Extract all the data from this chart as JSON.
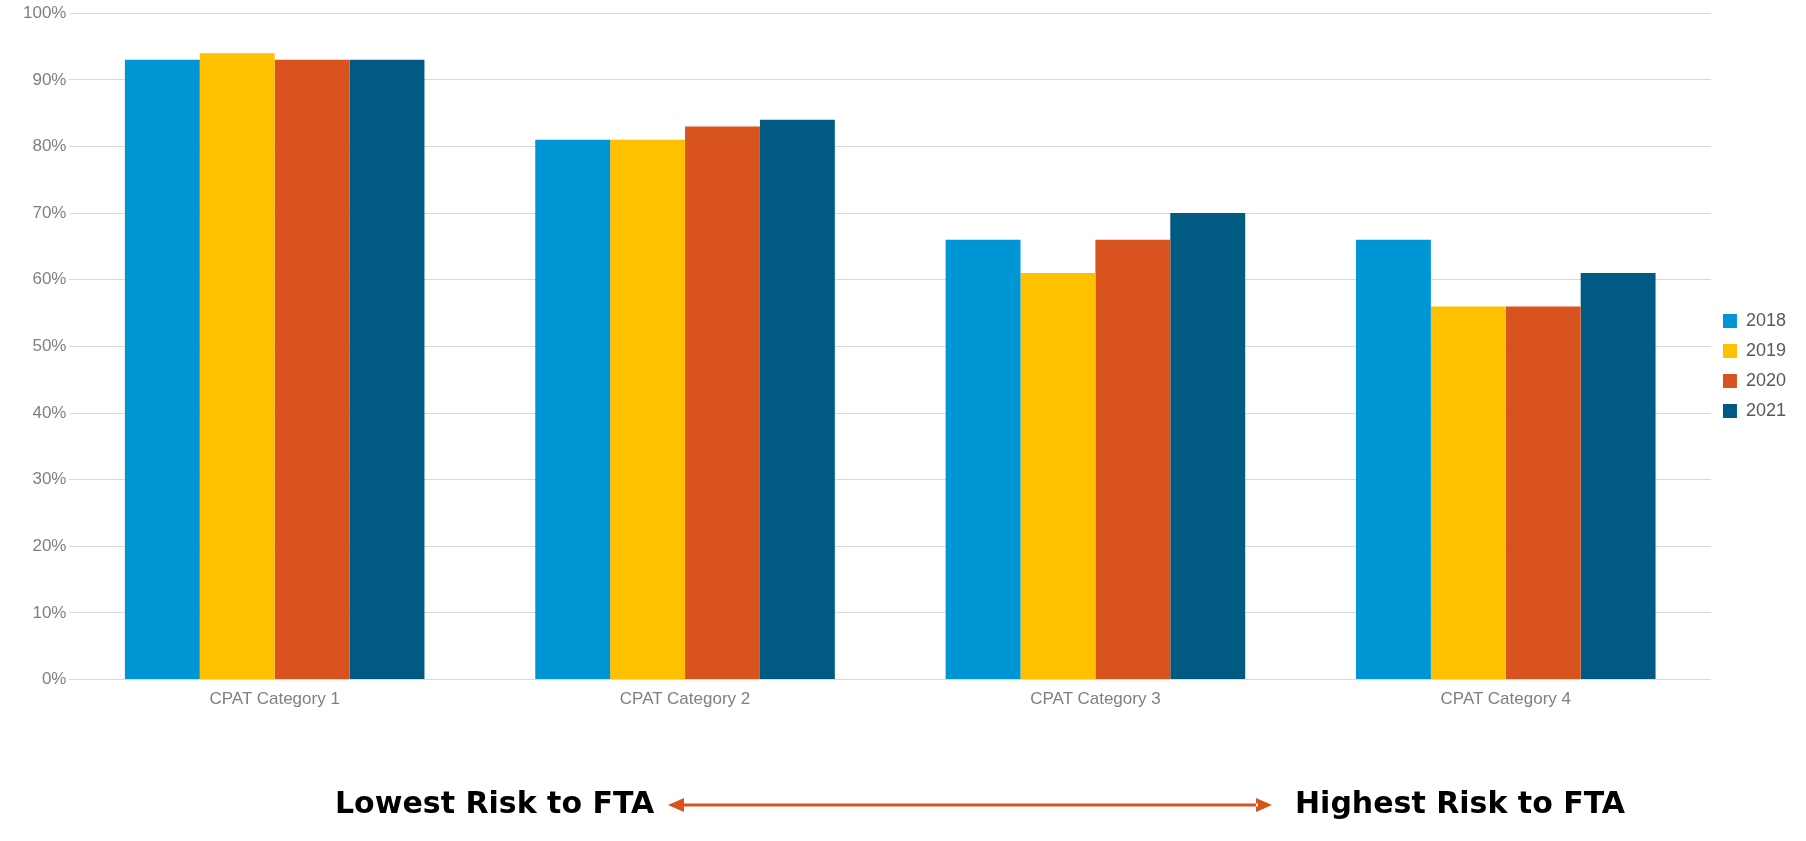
{
  "chart_data": {
    "type": "bar",
    "categories": [
      "CPAT Category 1",
      "CPAT Category 2",
      "CPAT Category 3",
      "CPAT Category 4"
    ],
    "series": [
      {
        "name": "2018",
        "color": "#0096d6",
        "values": [
          93,
          81,
          66,
          66
        ]
      },
      {
        "name": "2019",
        "color": "#ffc000",
        "values": [
          94,
          81,
          61,
          56
        ]
      },
      {
        "name": "2020",
        "color": "#d9531e",
        "values": [
          93,
          83,
          66,
          56
        ]
      },
      {
        "name": "2021",
        "color": "#005a82",
        "values": [
          93,
          84,
          70,
          61
        ]
      }
    ],
    "ylim": [
      0,
      100
    ],
    "yticks": [
      {
        "value": 0,
        "label": "0%"
      },
      {
        "value": 10,
        "label": "10%"
      },
      {
        "value": 20,
        "label": "20%"
      },
      {
        "value": 30,
        "label": "30%"
      },
      {
        "value": 40,
        "label": "40%"
      },
      {
        "value": 50,
        "label": "50%"
      },
      {
        "value": 60,
        "label": "60%"
      },
      {
        "value": 70,
        "label": "70%"
      },
      {
        "value": 80,
        "label": "80%"
      },
      {
        "value": 90,
        "label": "90%"
      },
      {
        "value": 100,
        "label": "100%"
      }
    ],
    "grid": "y",
    "legend": "right",
    "annotations": [
      "Lowest Risk to FTA",
      "Highest Risk to FTA"
    ]
  }
}
